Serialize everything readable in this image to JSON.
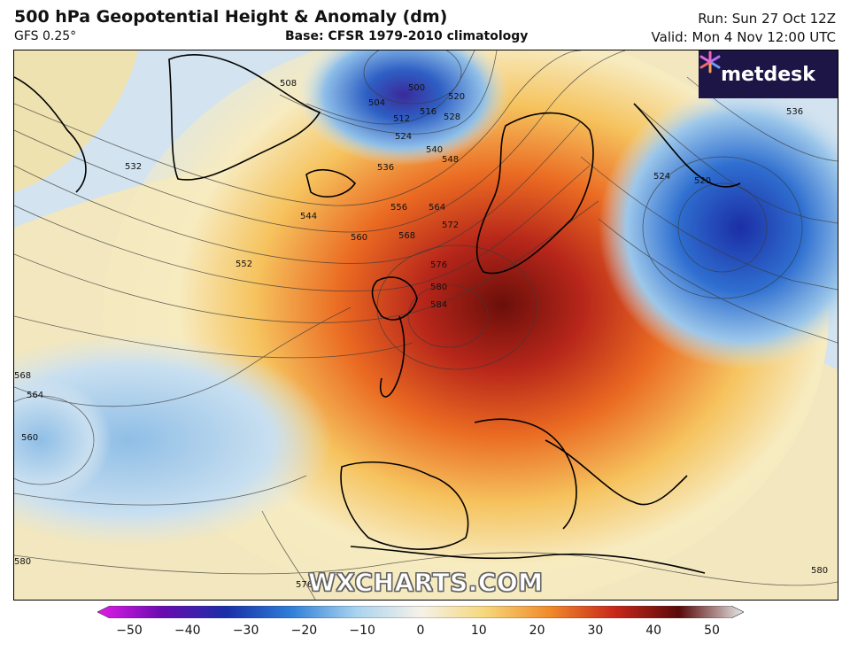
{
  "header": {
    "title": "500 hPa Geopotential Height & Anomaly (dm)",
    "model": "GFS 0.25°",
    "base": "Base: CFSR 1979-2010 climatology",
    "run": "Run: Sun 27 Oct 12Z",
    "valid": "Valid: Mon 4 Nov 12:00 UTC"
  },
  "logo": {
    "name": "metdesk",
    "icon": "metdesk-logo-icon",
    "color": "#1d1546"
  },
  "watermark": "WXCHARTS.COM",
  "colorbar": {
    "ticks": [
      "−50",
      "−40",
      "−30",
      "−20",
      "−10",
      "0",
      "10",
      "20",
      "30",
      "40",
      "50"
    ],
    "stops": [
      "#e21ce8",
      "#6a0cb0",
      "#1a2fa8",
      "#2f7fd8",
      "#a9d3ef",
      "#f5f2e8",
      "#f6d77a",
      "#f08a2a",
      "#c8281a",
      "#5a0a0a",
      "#e8e8e8"
    ]
  },
  "contours": [
    {
      "label": "508"
    },
    {
      "label": "504"
    },
    {
      "label": "500"
    },
    {
      "label": "512"
    },
    {
      "label": "516"
    },
    {
      "label": "520"
    },
    {
      "label": "524"
    },
    {
      "label": "528"
    },
    {
      "label": "532"
    },
    {
      "label": "536"
    },
    {
      "label": "540"
    },
    {
      "label": "544"
    },
    {
      "label": "548"
    },
    {
      "label": "552"
    },
    {
      "label": "556"
    },
    {
      "label": "560"
    },
    {
      "label": "564"
    },
    {
      "label": "568"
    },
    {
      "label": "572"
    },
    {
      "label": "576"
    },
    {
      "label": "580"
    },
    {
      "label": "584"
    },
    {
      "label": "520"
    },
    {
      "label": "524"
    },
    {
      "label": "536"
    },
    {
      "label": "564"
    },
    {
      "label": "560"
    },
    {
      "label": "568"
    },
    {
      "label": "580"
    },
    {
      "label": "576"
    },
    {
      "label": "580"
    }
  ]
}
